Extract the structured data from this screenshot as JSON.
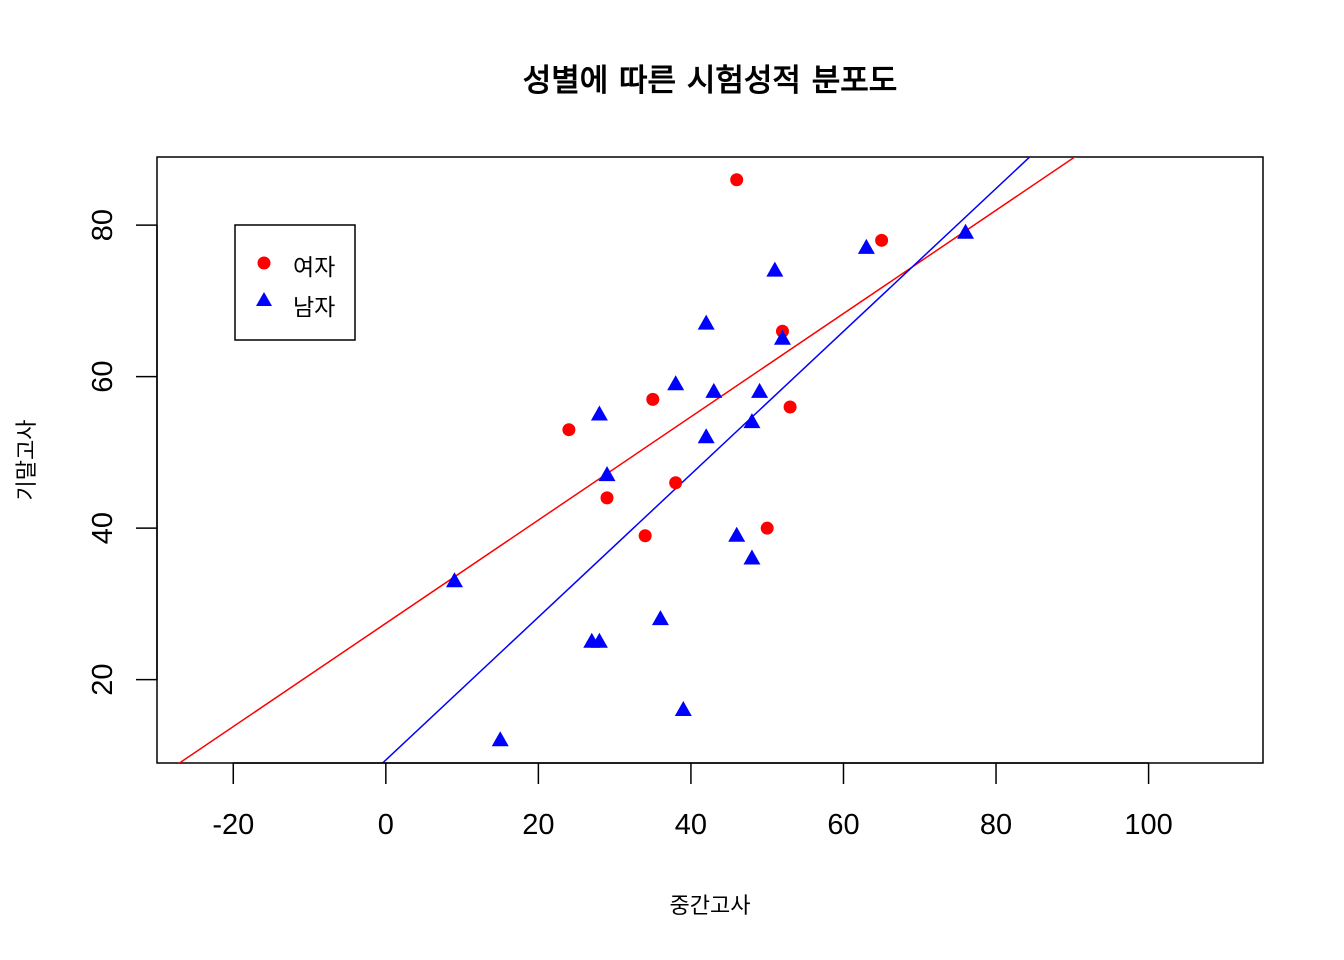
{
  "chart_data": {
    "type": "scatter",
    "title": "성별에 따른 시험성적 분포도",
    "xlabel": "중간고사",
    "ylabel": "기말고사",
    "xlim": [
      -30,
      115
    ],
    "ylim": [
      9,
      89
    ],
    "x_ticks": [
      -20,
      0,
      20,
      40,
      60,
      80,
      100
    ],
    "y_ticks": [
      20,
      40,
      60,
      80
    ],
    "grid": false,
    "legend_position": "top-left",
    "series": [
      {
        "name": "여자",
        "color": "#ff0000",
        "marker": "circle",
        "points": [
          {
            "x": 24,
            "y": 53
          },
          {
            "x": 29,
            "y": 44
          },
          {
            "x": 34,
            "y": 39
          },
          {
            "x": 35,
            "y": 57
          },
          {
            "x": 38,
            "y": 46
          },
          {
            "x": 46,
            "y": 86
          },
          {
            "x": 50,
            "y": 40
          },
          {
            "x": 52,
            "y": 66
          },
          {
            "x": 53,
            "y": 56
          },
          {
            "x": 65,
            "y": 78
          }
        ],
        "fit_line": {
          "slope": 0.6816,
          "intercept": 27.44
        }
      },
      {
        "name": "남자",
        "color": "#0000ff",
        "marker": "triangle",
        "points": [
          {
            "x": 9,
            "y": 33
          },
          {
            "x": 15,
            "y": 12
          },
          {
            "x": 27,
            "y": 25
          },
          {
            "x": 28,
            "y": 25
          },
          {
            "x": 28,
            "y": 55
          },
          {
            "x": 29,
            "y": 47
          },
          {
            "x": 36,
            "y": 28
          },
          {
            "x": 38,
            "y": 59
          },
          {
            "x": 39,
            "y": 16
          },
          {
            "x": 42,
            "y": 52
          },
          {
            "x": 42,
            "y": 67
          },
          {
            "x": 43,
            "y": 58
          },
          {
            "x": 46,
            "y": 39
          },
          {
            "x": 48,
            "y": 36
          },
          {
            "x": 48,
            "y": 54
          },
          {
            "x": 49,
            "y": 58
          },
          {
            "x": 51,
            "y": 74
          },
          {
            "x": 52,
            "y": 65
          },
          {
            "x": 63,
            "y": 77
          },
          {
            "x": 76,
            "y": 79
          }
        ],
        "fit_line": {
          "slope": 0.9431,
          "intercept": 9.395
        }
      }
    ]
  }
}
